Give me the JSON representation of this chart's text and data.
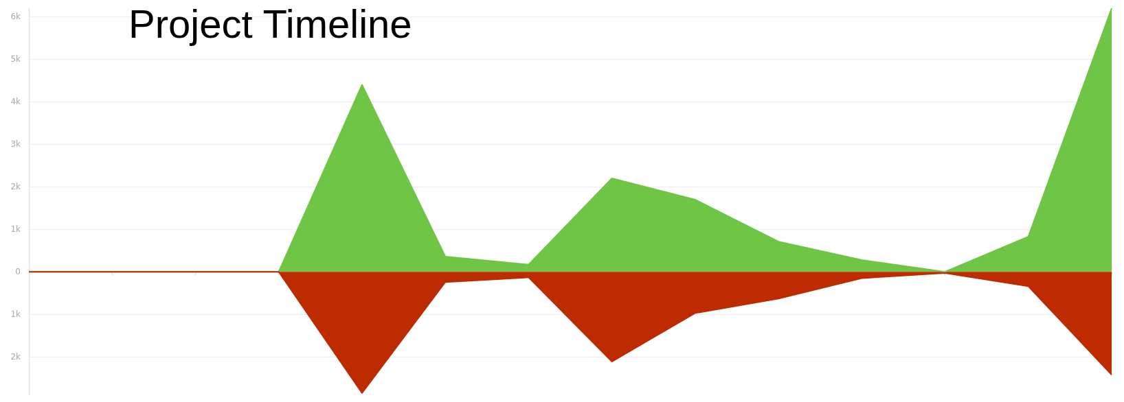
{
  "chart_data": {
    "type": "area",
    "title": "Project Timeline",
    "categories": [
      null,
      null,
      null,
      null,
      null,
      null,
      null,
      null,
      null,
      null,
      null,
      null,
      null,
      null
    ],
    "series": [
      {
        "color": "#6ec546",
        "values": [
          0,
          0,
          0,
          0,
          4400,
          360,
          170,
          2200,
          1700,
          710,
          280,
          0,
          830,
          6200
        ]
      },
      {
        "color": "#bd2b00",
        "values": [
          0,
          0,
          0,
          0,
          -2850,
          -240,
          -130,
          -2110,
          -970,
          -630,
          -150,
          -30,
          -340,
          -2420
        ]
      }
    ],
    "ylim": [
      -2900,
      6200
    ],
    "yticks": [
      {
        "value": -2000,
        "label": "2k"
      },
      {
        "value": -1000,
        "label": "1k"
      },
      0,
      {
        "value": 1000,
        "label": "1k"
      },
      {
        "value": 2000,
        "label": "2k"
      },
      {
        "value": 3000,
        "label": "3k"
      },
      {
        "value": 4000,
        "label": "4k"
      },
      {
        "value": 5000,
        "label": "5k"
      },
      {
        "value": 6000,
        "label": "6k"
      }
    ],
    "grid": "y",
    "tick_labels": "y",
    "marker": "none"
  }
}
